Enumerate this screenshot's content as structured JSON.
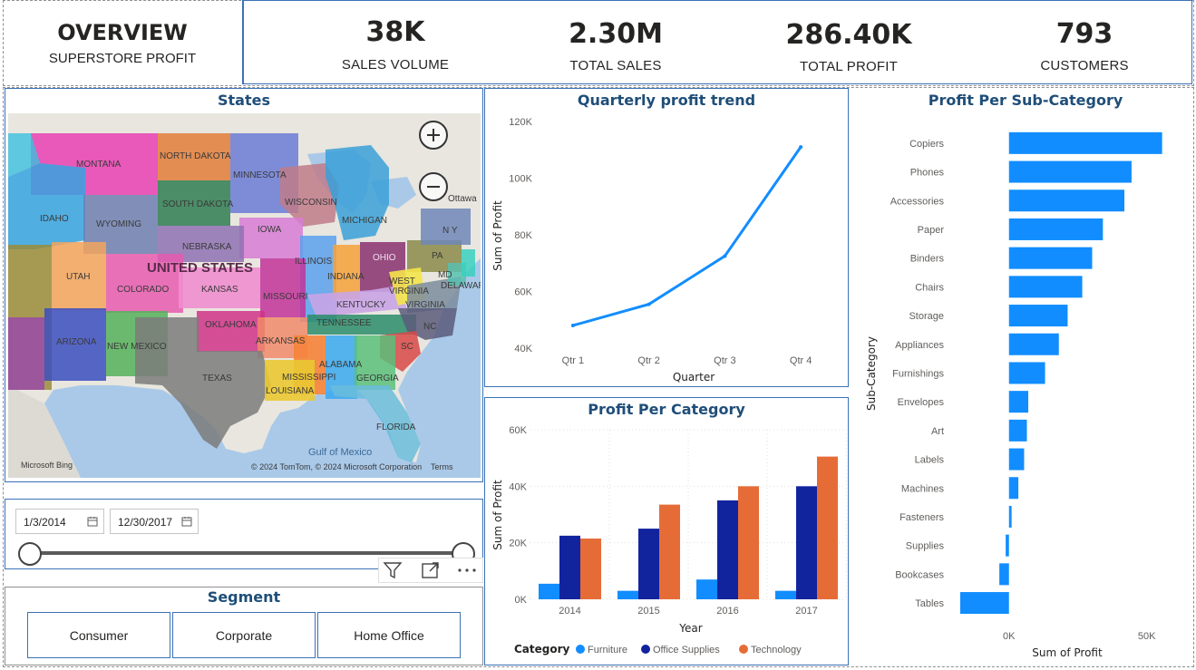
{
  "header": {
    "title": "OVERVIEW",
    "subtitle": "SUPERSTORE PROFIT",
    "kpis": [
      {
        "value": "38K",
        "label": "SALES VOLUME"
      },
      {
        "value": "2.30M",
        "label": "TOTAL SALES"
      },
      {
        "value": "286.40K",
        "label": "TOTAL PROFIT"
      },
      {
        "value": "793",
        "label": "CUSTOMERS"
      }
    ]
  },
  "map": {
    "title": "States",
    "country_label": "UNITED STATES",
    "water_label": "Gulf of Mexico",
    "attribution": "© 2024 TomTom, © 2024 Microsoft Corporation",
    "terms": "Terms",
    "bing_logo": "Microsoft Bing",
    "ottawa": "Ottawa",
    "zoom_in_icon": "plus-circle-icon",
    "zoom_out_icon": "minus-circle-icon",
    "state_labels": {
      "montana": "MONTANA",
      "north_dakota": "NORTH DAKOTA",
      "minnesota": "MINNESOTA",
      "south_dakota": "SOUTH DAKOTA",
      "wisconsin": "WISCONSIN",
      "michigan": "MICHIGAN",
      "idaho": "IDAHO",
      "wyoming": "WYOMING",
      "iowa": "IOWA",
      "nebraska": "NEBRASKA",
      "ny": "N Y",
      "utah": "UTAH",
      "illinois": "ILLINOIS",
      "ohio": "OHIO",
      "pa": "PA",
      "colorado": "COLORADO",
      "kansas": "KANSAS",
      "indiana": "INDIANA",
      "md": "MD",
      "delaware": "DELAWAR",
      "west_virginia": "WEST VIRGINIA",
      "missouri": "MISSOURI",
      "kentucky": "KENTUCKY",
      "virginia": "VIRGINIA",
      "tennessee": "TENNESSEE",
      "nc": "NC",
      "oklahoma": "OKLAHOMA",
      "arizona": "ARIZONA",
      "new_mexico": "NEW MEXICO",
      "arkansas": "ARKANSAS",
      "sc": "SC",
      "texas": "TEXAS",
      "mississippi": "MISSISSIPPI",
      "alabama": "ALABAMA",
      "georgia": "GEORGIA",
      "louisiana": "LOUISIANA",
      "florida": "FLORIDA"
    }
  },
  "date_slicer": {
    "start": "1/3/2014",
    "end": "12/30/2017",
    "start_progress": 0,
    "end_progress": 1,
    "calendar_icon": "calendar-icon",
    "filter_icon": "filter-icon",
    "focus_icon": "focus-mode-icon",
    "more_icon": "more-options-icon"
  },
  "segment": {
    "title": "Segment",
    "options": [
      "Consumer",
      "Corporate",
      "Home Office"
    ]
  },
  "quarterly": {
    "title": "Quarterly profit trend",
    "chart_data": {
      "type": "line",
      "title": "Quarterly profit trend",
      "xlabel": "Quarter",
      "ylabel": "Sum of Profit",
      "categories": [
        "Qtr 1",
        "Qtr 2",
        "Qtr 3",
        "Qtr 4"
      ],
      "values": [
        48000,
        55500,
        72500,
        111000
      ],
      "ylim": [
        40000,
        120000
      ],
      "yticks": [
        "40K",
        "60K",
        "80K",
        "100K",
        "120K"
      ],
      "color": "#118dff",
      "grid": false
    }
  },
  "category": {
    "title": "Profit Per Category",
    "chart_data": {
      "type": "bar",
      "title": "Profit Per Category",
      "xlabel": "Year",
      "ylabel": "Sum of Profit",
      "legend_title": "Category",
      "categories": [
        "2014",
        "2015",
        "2016",
        "2017"
      ],
      "series": [
        {
          "name": "Furniture",
          "color": "#118dff",
          "values": [
            5500,
            3000,
            7000,
            3000
          ]
        },
        {
          "name": "Office Supplies",
          "color": "#12239e",
          "values": [
            22500,
            25000,
            35000,
            40000
          ]
        },
        {
          "name": "Technology",
          "color": "#e66c37",
          "values": [
            21500,
            33500,
            40000,
            50500
          ]
        }
      ],
      "ylim": [
        0,
        60000
      ],
      "yticks": [
        "0K",
        "20K",
        "40K",
        "60K"
      ],
      "grid": true,
      "legend_position": "bottom-left"
    }
  },
  "subcategory": {
    "title": "Profit Per Sub-Category",
    "chart_data": {
      "type": "bar",
      "orientation": "horizontal",
      "title": "Profit Per Sub-Category",
      "xlabel": "Sum of Profit",
      "ylabel": "Sub-Category",
      "categories": [
        "Copiers",
        "Phones",
        "Accessories",
        "Paper",
        "Binders",
        "Chairs",
        "Storage",
        "Appliances",
        "Furnishings",
        "Envelopes",
        "Art",
        "Labels",
        "Machines",
        "Fasteners",
        "Supplies",
        "Bookcases",
        "Tables"
      ],
      "values": [
        55600,
        44500,
        41900,
        34100,
        30200,
        26600,
        21300,
        18100,
        13100,
        7000,
        6500,
        5500,
        3400,
        950,
        -1200,
        -3500,
        -17700
      ],
      "xlim": [
        -20000,
        60000
      ],
      "xticks": [
        "0K",
        "50K"
      ],
      "color": "#118dff",
      "grid": false
    }
  }
}
